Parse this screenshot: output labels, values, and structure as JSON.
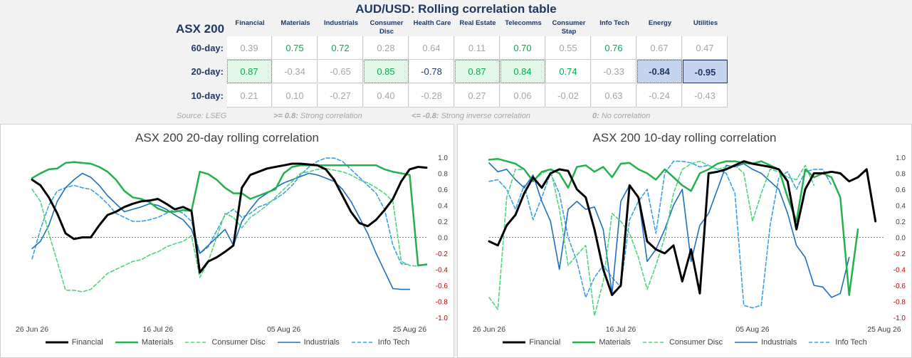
{
  "title": "AUD/USD: Rolling correlation table",
  "index_label": "ASX 200",
  "table": {
    "columns": [
      "Financial",
      "Materials",
      "Industrials",
      "Consumer\nDisc",
      "Health Care",
      "Real Estate",
      "Telecomms",
      "Consumer\nStap",
      "Info Tech",
      "Energy",
      "Utilities"
    ],
    "rows": [
      {
        "label": "60-day:",
        "values": [
          "0.39",
          "0.75",
          "0.72",
          "0.28",
          "0.64",
          "0.11",
          "0.70",
          "0.55",
          "0.76",
          "0.67",
          "0.47"
        ]
      },
      {
        "label": "20-day:",
        "values": [
          "0.87",
          "-0.34",
          "-0.65",
          "0.85",
          "-0.78",
          "0.87",
          "0.84",
          "0.74",
          "-0.33",
          "-0.84",
          "-0.95"
        ]
      },
      {
        "label": "10-day:",
        "values": [
          "0.21",
          "0.10",
          "-0.27",
          "0.40",
          "-0.28",
          "0.27",
          "0.06",
          "-0.02",
          "0.63",
          "-0.24",
          "-0.43"
        ]
      }
    ]
  },
  "footnotes": {
    "source": "Source: LSEG",
    "strong_prefix": ">= 0.8:",
    "strong_text": " Strong correlation",
    "inverse_prefix": "<= -0.8:",
    "inverse_text": " Strong inverse correlation",
    "zero_prefix": "0:",
    "zero_text": " No correlation"
  },
  "colors": {
    "navy": "#1f3864",
    "positive_green": "#00b050",
    "neutral_grey": "#a6a6a6",
    "strong_neg": "#1f3864",
    "neg_axis_red": "#c00000",
    "financial": "#000000",
    "materials": "#22b14c",
    "consumer_disc": "#4fd67a",
    "industrials": "#1f6fc0",
    "info_tech": "#3aa0e8"
  },
  "chart_data": [
    {
      "type": "line",
      "title": "ASX 200 20-day rolling correlation",
      "x_tick_labels": [
        "26 Jun 26",
        "16 Jul 26",
        "05 Aug 26",
        "25 Aug 26"
      ],
      "x_tick_index": [
        0,
        15,
        30,
        45
      ],
      "y_ticks": [
        "1.0",
        "0.8",
        "0.6",
        "0.4",
        "0.2",
        "0.0",
        "-0.2",
        "-0.4",
        "-0.6",
        "-0.8",
        "-1.0"
      ],
      "ylim": [
        -1.0,
        1.0
      ],
      "series": [
        {
          "name": "Financial",
          "values": [
            0.72,
            0.65,
            0.5,
            0.3,
            0.05,
            -0.02,
            0.0,
            0.0,
            0.15,
            0.28,
            0.32,
            0.38,
            0.42,
            0.45,
            0.46,
            0.48,
            0.42,
            0.35,
            0.38,
            0.33,
            -0.44,
            -0.3,
            -0.25,
            -0.18,
            -0.1,
            0.62,
            0.78,
            0.82,
            0.86,
            0.88,
            0.9,
            0.92,
            0.92,
            0.91,
            0.9,
            0.85,
            0.72,
            0.52,
            0.32,
            0.18,
            0.14,
            0.22,
            0.34,
            0.48,
            0.7,
            0.85,
            0.88,
            0.87
          ]
        },
        {
          "name": "Materials",
          "values": [
            0.74,
            0.8,
            0.85,
            0.86,
            0.93,
            0.94,
            0.93,
            0.92,
            0.88,
            0.82,
            0.72,
            0.58,
            0.5,
            0.48,
            0.44,
            0.36,
            0.32,
            0.32,
            0.34,
            0.33,
            0.82,
            0.79,
            0.72,
            0.62,
            0.55,
            0.55,
            0.48,
            0.52,
            0.56,
            0.6,
            0.8,
            0.88,
            0.9,
            0.9,
            0.9,
            0.9,
            0.9,
            0.9,
            0.9,
            0.9,
            0.9,
            0.9,
            0.85,
            0.82,
            0.8,
            0.78,
            -0.35,
            -0.34
          ]
        },
        {
          "name": "Consumer Disc",
          "values": [
            0.6,
            0.45,
            0.05,
            -0.3,
            -0.66,
            -0.66,
            -0.68,
            -0.65,
            -0.55,
            -0.45,
            -0.4,
            -0.35,
            -0.3,
            -0.28,
            -0.22,
            -0.18,
            -0.12,
            -0.08,
            -0.05,
            0.02,
            -0.5,
            -0.3,
            0.0,
            0.3,
            0.25,
            0.12,
            0.25,
            0.32,
            0.4,
            0.5,
            0.6,
            0.7,
            0.8,
            0.82,
            0.85,
            0.86,
            0.84,
            0.82,
            0.78,
            0.72,
            0.68,
            0.62,
            0.55,
            0.45,
            -0.3,
            -0.35,
            -0.36,
            -0.33
          ]
        },
        {
          "name": "Industrials",
          "values": [
            -0.14,
            -0.05,
            0.15,
            0.45,
            0.62,
            0.72,
            0.8,
            0.75,
            0.65,
            0.52,
            0.42,
            0.32,
            0.35,
            0.38,
            0.42,
            0.4,
            0.35,
            0.28,
            0.22,
            0.1,
            -0.2,
            -0.1,
            0.0,
            0.1,
            -0.1,
            0.2,
            0.35,
            0.48,
            0.55,
            0.62,
            0.68,
            0.72,
            0.76,
            0.8,
            0.78,
            0.74,
            0.7,
            0.6,
            0.45,
            0.25,
            0.05,
            -0.2,
            -0.42,
            -0.64,
            -0.65,
            -0.65
          ]
        },
        {
          "name": "Info Tech",
          "values": [
            -0.27,
            0.1,
            0.4,
            0.58,
            0.62,
            0.65,
            0.62,
            0.6,
            0.52,
            0.42,
            0.3,
            0.25,
            0.2,
            0.2,
            0.22,
            0.25,
            0.3,
            0.35,
            0.3,
            0.2,
            -0.2,
            -0.12,
            0.08,
            0.28,
            0.35,
            0.25,
            0.3,
            0.38,
            0.42,
            0.48,
            0.55,
            0.65,
            0.78,
            0.88,
            0.95,
            0.99,
            0.99,
            0.95,
            0.85,
            0.75,
            0.65,
            0.55,
            0.35,
            -0.1,
            -0.33,
            -0.34
          ]
        }
      ]
    },
    {
      "type": "line",
      "title": "ASX 200 10-day rolling correlation",
      "x_tick_labels": [
        "26 Jun 26",
        "16 Jul 26",
        "05 Aug 26",
        "25 Aug 26"
      ],
      "x_tick_index": [
        0,
        15,
        30,
        45
      ],
      "y_ticks": [
        "1.0",
        "0.8",
        "0.6",
        "0.4",
        "0.2",
        "0.0",
        "-0.2",
        "-0.4",
        "-0.6",
        "-0.8",
        "-1.0"
      ],
      "ylim": [
        -1.0,
        1.0
      ],
      "series": [
        {
          "name": "Financial",
          "values": [
            -0.05,
            -0.1,
            0.15,
            0.28,
            0.55,
            0.75,
            0.62,
            0.8,
            0.85,
            0.83,
            0.6,
            0.5,
            0.1,
            -0.4,
            -0.72,
            -0.6,
            0.65,
            0.5,
            -0.05,
            -0.15,
            -0.2,
            -0.1,
            -0.55,
            -0.15,
            -0.7,
            0.8,
            0.82,
            0.85,
            0.9,
            0.95,
            0.92,
            0.9,
            0.88,
            0.85,
            0.7,
            0.1,
            0.6,
            0.8,
            0.8,
            0.82,
            0.8,
            0.7,
            0.75,
            0.85,
            0.2
          ]
        },
        {
          "name": "Materials",
          "values": [
            0.97,
            0.98,
            0.95,
            0.92,
            0.85,
            0.7,
            0.82,
            0.85,
            0.8,
            0.62,
            0.88,
            0.9,
            0.82,
            0.88,
            0.75,
            0.92,
            0.93,
            0.85,
            0.8,
            0.72,
            0.85,
            0.75,
            0.65,
            0.58,
            0.8,
            0.85,
            0.92,
            0.95,
            0.95,
            0.93,
            0.92,
            0.95,
            0.9,
            0.85,
            0.5,
            0.2,
            0.85,
            0.75,
            0.8,
            0.75,
            0.5,
            -0.72,
            0.1
          ]
        },
        {
          "name": "Consumer Disc",
          "values": [
            -0.75,
            -0.9,
            0.5,
            0.85,
            0.85,
            0.7,
            0.8,
            0.85,
            0.35,
            -0.35,
            -0.22,
            -0.1,
            -0.98,
            -0.55,
            0.3,
            0.2,
            0.05,
            -0.25,
            -0.65,
            -0.35,
            0.0,
            0.55,
            0.85,
            0.92,
            0.95,
            0.9,
            0.85,
            0.88,
            0.9,
            0.8,
            0.2,
            0.55,
            0.85,
            0.82,
            0.75,
            0.72,
            0.9,
            0.65
          ]
        },
        {
          "name": "Industrials",
          "values": [
            0.93,
            0.82,
            0.85,
            0.72,
            0.62,
            0.78,
            0.45,
            0.2,
            -0.4,
            0.35,
            0.45,
            0.35,
            0.38,
            0.1,
            -0.7,
            0.45,
            0.65,
            0.5,
            -0.3,
            -0.15,
            0.1,
            0.4,
            0.6,
            -0.3,
            0.15,
            0.3,
            0.6,
            0.9,
            0.88,
            0.92,
            0.85,
            0.8,
            0.7,
            0.6,
            0.3,
            -0.1,
            -0.25,
            -0.6,
            -0.62,
            -0.75,
            -0.7,
            -0.25
          ]
        },
        {
          "name": "Info Tech",
          "values": [
            0.7,
            0.72,
            0.6,
            0.35,
            0.65,
            0.22,
            0.5,
            0.8,
            0.55,
            0.0,
            -0.3,
            -0.75,
            -0.5,
            -0.35,
            -0.5,
            -0.62,
            0.22,
            0.45,
            0.6,
            0.05,
            0.8,
            0.95,
            0.95,
            0.93,
            0.88,
            0.9,
            0.85,
            0.8,
            0.55,
            -0.85,
            -0.88,
            -0.85,
            0.15,
            0.75,
            0.82,
            0.6,
            0.82,
            0.85,
            0.85,
            0.65
          ]
        }
      ]
    }
  ]
}
